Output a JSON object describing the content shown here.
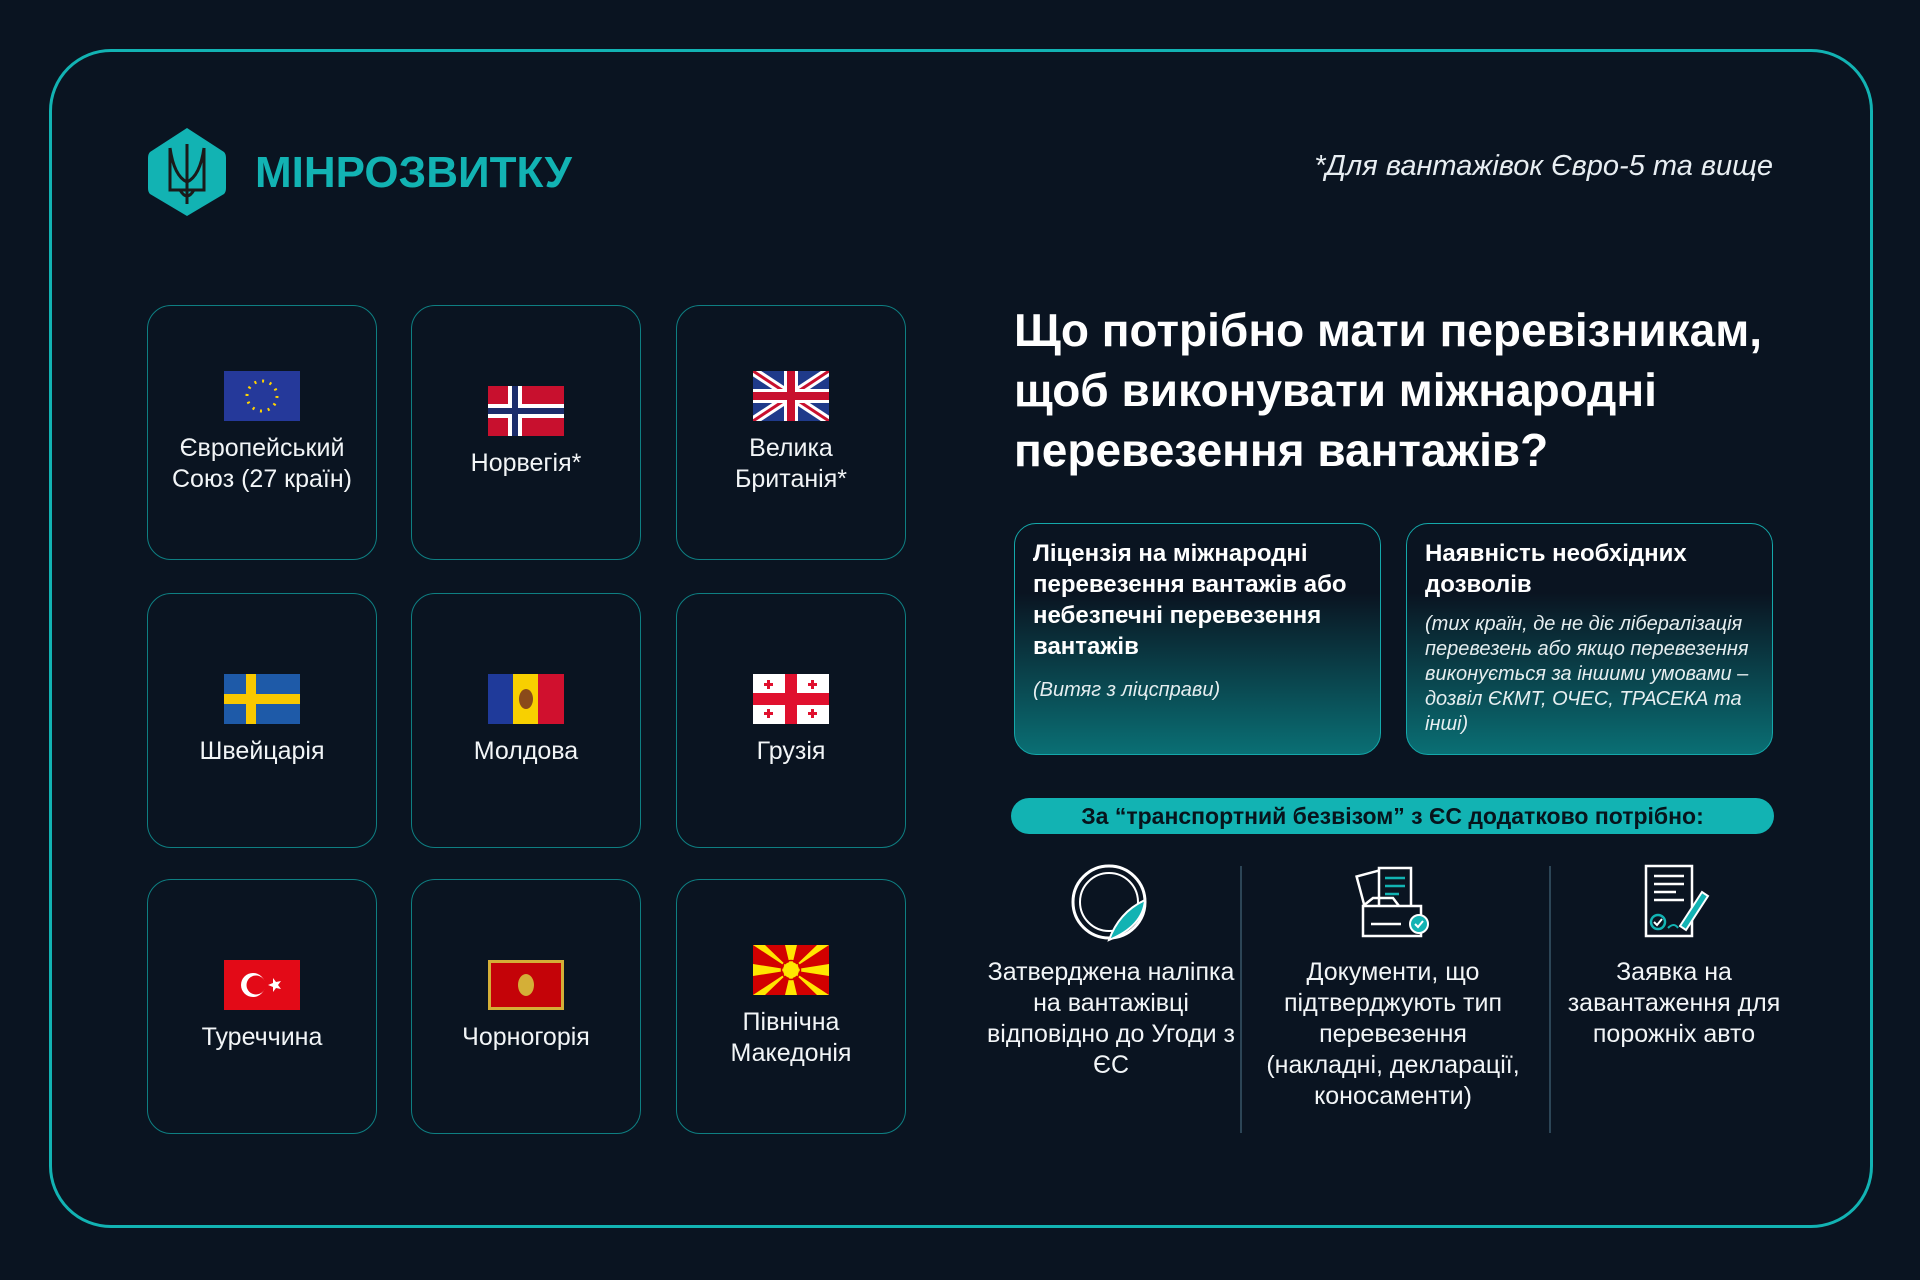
{
  "brand": {
    "name": "МІНРОЗВИТКУ",
    "color": "#12b3b3",
    "icon": "trident-hexagon-logo"
  },
  "note": "*Для вантажівок Євро-5 та вище",
  "countries": [
    {
      "label": "Європейський Союз (27 країн)",
      "flag": "eu-flag"
    },
    {
      "label": "Норвегія*",
      "flag": "norway-flag"
    },
    {
      "label": "Велика Британія*",
      "flag": "uk-flag"
    },
    {
      "label": "Швейцарія",
      "flag": "sweden-flag"
    },
    {
      "label": "Молдова",
      "flag": "moldova-flag"
    },
    {
      "label": "Грузія",
      "flag": "georgia-flag"
    },
    {
      "label": "Туреччина",
      "flag": "turkey-flag"
    },
    {
      "label": "Чорногорія",
      "flag": "montenegro-flag"
    },
    {
      "label": "Північна Македонія",
      "flag": "north-macedonia-flag"
    }
  ],
  "heading": "Що потрібно мати перевізникам, щоб виконувати міжнародні перевезення вантажів?",
  "boxes": [
    {
      "title": "Ліцензія на міжнародні перевезення вантажів або небезпечні перевезення вантажів",
      "subtitle": "(Витяг з ліцсправи)"
    },
    {
      "title": "Наявність необхідних дозволів",
      "subtitle": "(тих країн, де не діє лібералізація перевезень або якщо перевезення виконується за іншими умовами – дозвіл ЄКМТ, ОЧЕС, ТРАСЕКА та інші)"
    }
  ],
  "banner": "За “транспортний безвізом” з ЄС додатково потрібно:",
  "requirements": [
    {
      "label": "Затверджена наліпка на вантажівці відповідно до Угоди з ЄС",
      "icon": "sticker-icon"
    },
    {
      "label": "Документи, що підтверджують тип перевезення (накладні, декларації, коносаменти)",
      "icon": "documents-icon"
    },
    {
      "label": "Заявка на завантаження для порожніх авто",
      "icon": "application-form-icon"
    }
  ]
}
